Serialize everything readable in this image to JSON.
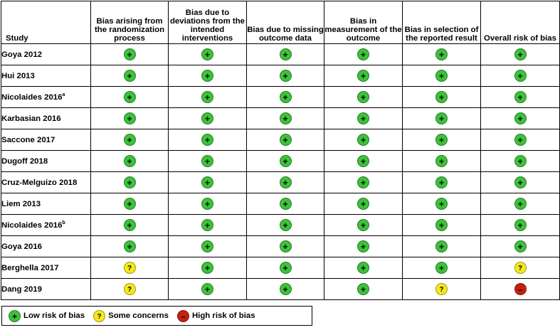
{
  "header": {
    "study": "Study",
    "columns": [
      "Bias arising from the randomization process",
      "Bias due to deviations from the intended interventions",
      "Bias due to missing outcome data",
      "Bias in measurement of the outcome",
      "Bias in selection of the reported result",
      "Overall risk of bias"
    ]
  },
  "symbols": {
    "low": "+",
    "some": "?",
    "high": "–"
  },
  "colors": {
    "low": "#3cc23a",
    "some": "#f5ea18",
    "high": "#c3220f"
  },
  "rows": [
    {
      "name": "Goya 2012",
      "sup": "",
      "judgements": [
        "low",
        "low",
        "low",
        "low",
        "low",
        "low"
      ]
    },
    {
      "name": "Hui 2013",
      "sup": "",
      "judgements": [
        "low",
        "low",
        "low",
        "low",
        "low",
        "low"
      ]
    },
    {
      "name": "Nicolaides 2016",
      "sup": "a",
      "judgements": [
        "low",
        "low",
        "low",
        "low",
        "low",
        "low"
      ]
    },
    {
      "name": "Karbasian 2016",
      "sup": "",
      "judgements": [
        "low",
        "low",
        "low",
        "low",
        "low",
        "low"
      ]
    },
    {
      "name": "Saccone 2017",
      "sup": "",
      "judgements": [
        "low",
        "low",
        "low",
        "low",
        "low",
        "low"
      ]
    },
    {
      "name": "Dugoff 2018",
      "sup": "",
      "judgements": [
        "low",
        "low",
        "low",
        "low",
        "low",
        "low"
      ]
    },
    {
      "name": "Cruz-Melguizo 2018",
      "sup": "",
      "judgements": [
        "low",
        "low",
        "low",
        "low",
        "low",
        "low"
      ]
    },
    {
      "name": "Liem 2013",
      "sup": "",
      "judgements": [
        "low",
        "low",
        "low",
        "low",
        "low",
        "low"
      ]
    },
    {
      "name": "Nicolaides 2016",
      "sup": "b",
      "judgements": [
        "low",
        "low",
        "low",
        "low",
        "low",
        "low"
      ]
    },
    {
      "name": "Goya 2016",
      "sup": "",
      "judgements": [
        "low",
        "low",
        "low",
        "low",
        "low",
        "low"
      ]
    },
    {
      "name": "Berghella 2017",
      "sup": "",
      "judgements": [
        "some",
        "low",
        "low",
        "low",
        "low",
        "some"
      ]
    },
    {
      "name": "Dang 2019",
      "sup": "",
      "judgements": [
        "some",
        "low",
        "low",
        "low",
        "some",
        "high"
      ]
    }
  ],
  "legend": [
    {
      "key": "low",
      "label": "Low risk of bias"
    },
    {
      "key": "some",
      "label": "Some concerns"
    },
    {
      "key": "high",
      "label": "High risk of bias"
    }
  ]
}
